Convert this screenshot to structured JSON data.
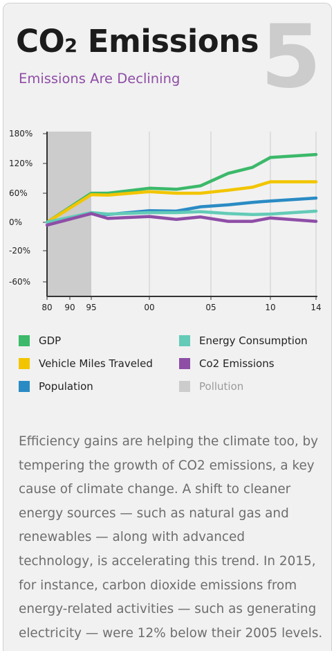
{
  "header": {
    "title_main": "CO",
    "title_subscript": "2",
    "title_rest": " Emissions",
    "subtitle": "Emissions Are Declining",
    "slide_number": "5"
  },
  "colors": {
    "background": "#f1f1f1",
    "subtitle": "#8e4ea6",
    "gdp": "#3cb96a",
    "vmt": "#f2c500",
    "population": "#2a8bc4",
    "energy": "#63cbb7",
    "co2": "#8e4ea6",
    "pollution": "#cccccc"
  },
  "chart_data": {
    "type": "line",
    "x": [
      80,
      95,
      97,
      2000,
      2003,
      2005,
      2007,
      2010,
      2012,
      2014
    ],
    "x_tick_labels": [
      "80",
      "90",
      "95",
      "00",
      "05",
      "10",
      "14"
    ],
    "y_tick_labels": [
      "180%",
      "120%",
      "60%",
      "0%",
      "-20%",
      "-60%"
    ],
    "ylim": [
      -75,
      180
    ],
    "y_scale": "nonlinear",
    "grid": "vertical",
    "shaded_band": {
      "from": "80",
      "to": "95",
      "label": "Pollution"
    },
    "series": [
      {
        "name": "GDP",
        "color": "#3cb96a",
        "points": [
          [
            "80",
            0
          ],
          [
            "95",
            60
          ],
          [
            "97",
            60
          ],
          [
            "00",
            70
          ],
          [
            "02",
            68
          ],
          [
            "04",
            75
          ],
          [
            "06",
            100
          ],
          [
            "08",
            112
          ],
          [
            "10",
            132
          ],
          [
            "14",
            138
          ]
        ]
      },
      {
        "name": "Vehicle Miles Traveled",
        "color": "#f2c500",
        "points": [
          [
            "80",
            0
          ],
          [
            "95",
            57
          ],
          [
            "97",
            56
          ],
          [
            "00",
            63
          ],
          [
            "02",
            60
          ],
          [
            "04",
            60
          ],
          [
            "06",
            66
          ],
          [
            "08",
            72
          ],
          [
            "10",
            83
          ],
          [
            "14",
            83
          ]
        ]
      },
      {
        "name": "Population",
        "color": "#2a8bc4",
        "points": [
          [
            "80",
            0
          ],
          [
            "95",
            18
          ],
          [
            "97",
            16
          ],
          [
            "00",
            24
          ],
          [
            "02",
            23
          ],
          [
            "04",
            32
          ],
          [
            "06",
            36
          ],
          [
            "08",
            41
          ],
          [
            "10",
            44
          ],
          [
            "14",
            50
          ]
        ]
      },
      {
        "name": "Energy Consumption",
        "color": "#63cbb7",
        "points": [
          [
            "80",
            0
          ],
          [
            "95",
            20
          ],
          [
            "97",
            17
          ],
          [
            "00",
            20
          ],
          [
            "02",
            20
          ],
          [
            "04",
            22
          ],
          [
            "06",
            18
          ],
          [
            "08",
            16
          ],
          [
            "10",
            17
          ],
          [
            "14",
            23
          ]
        ]
      },
      {
        "name": "Co2 Emissions",
        "color": "#8e4ea6",
        "points": [
          [
            "80",
            -2
          ],
          [
            "95",
            18
          ],
          [
            "97",
            8
          ],
          [
            "00",
            12
          ],
          [
            "02",
            6
          ],
          [
            "04",
            11
          ],
          [
            "06",
            2
          ],
          [
            "08",
            2
          ],
          [
            "10",
            9
          ],
          [
            "14",
            2
          ]
        ]
      }
    ]
  },
  "legend": [
    {
      "label": "GDP",
      "color": "#3cb96a"
    },
    {
      "label": "Energy Consumption",
      "color": "#63cbb7"
    },
    {
      "label": "Vehicle Miles Traveled",
      "color": "#f2c500"
    },
    {
      "label": "Co2 Emissions",
      "color": "#8e4ea6"
    },
    {
      "label": "Population",
      "color": "#2a8bc4"
    },
    {
      "label": "Pollution",
      "color": "#cccccc",
      "muted": true
    }
  ],
  "body": {
    "paragraph": "Efficiency gains are helping the climate too, by tempering the growth of CO2 emissions, a key cause of climate change. A shift to cleaner energy sources — such as natural gas and renewables — along with advanced technology, is accelerating this trend. In 2015, for instance, carbon dioxide emissions from energy-related activities — such as generating electricity — were 12% below their 2005 levels."
  }
}
